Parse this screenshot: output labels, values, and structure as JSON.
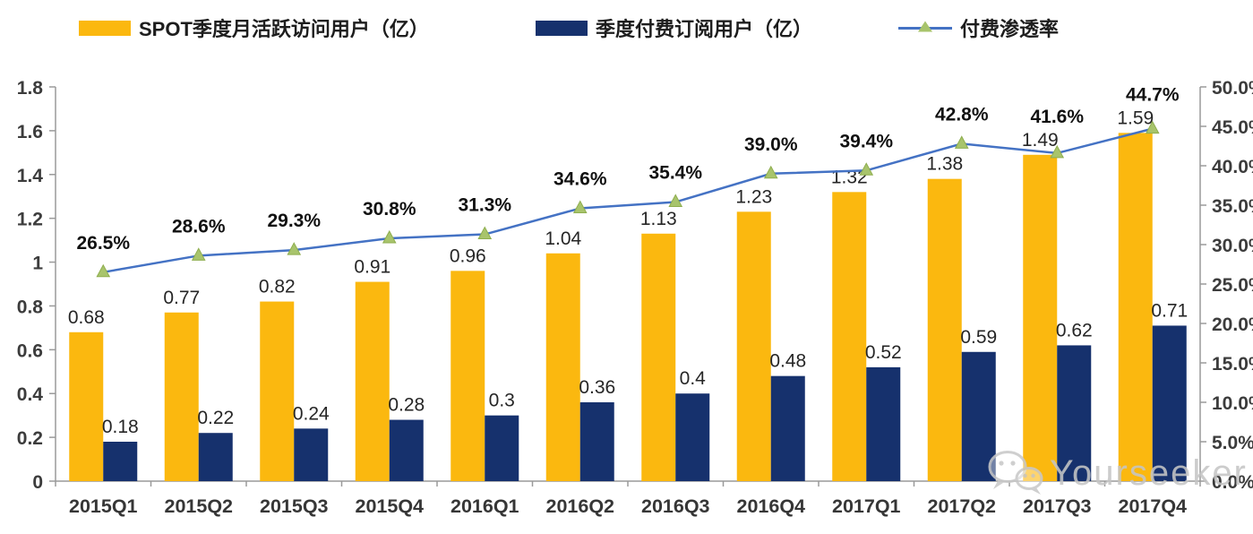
{
  "watermark": {
    "text": "Yourseeker",
    "icon": "wechat-icon"
  },
  "colors": {
    "mau_bar": "#FBB80F",
    "subs_bar": "#16316D",
    "penetration_line": "#4472C4",
    "penetration_marker": "#A8C46C",
    "penetration_marker_edge": "#8FAE4F",
    "axis": "#9a9a9a",
    "watermark_gray": "#c9c9c9"
  },
  "chart_data": {
    "type": "bar+line combo",
    "title": "",
    "grid": false,
    "legend_position": "top",
    "categories": [
      "2015Q1",
      "2015Q2",
      "2015Q3",
      "2015Q4",
      "2016Q1",
      "2016Q2",
      "2016Q3",
      "2016Q4",
      "2017Q1",
      "2017Q2",
      "2017Q3",
      "2017Q4"
    ],
    "series": [
      {
        "name": "SPOT季度月活跃访问用户（亿）",
        "type": "bar",
        "axis": "left",
        "color": "#FBB80F",
        "values": [
          0.68,
          0.77,
          0.82,
          0.91,
          0.96,
          1.04,
          1.13,
          1.23,
          1.32,
          1.38,
          1.49,
          1.59
        ],
        "labels": [
          "0.68",
          "0.77",
          "0.82",
          "0.91",
          "0.96",
          "1.04",
          "1.13",
          "1.23",
          "1.32",
          "1.38",
          "1.49",
          "1.59"
        ]
      },
      {
        "name": "季度付费订阅用户（亿）",
        "type": "bar",
        "axis": "left",
        "color": "#16316D",
        "values": [
          0.18,
          0.22,
          0.24,
          0.28,
          0.3,
          0.36,
          0.4,
          0.48,
          0.52,
          0.59,
          0.62,
          0.71
        ],
        "labels": [
          "0.18",
          "0.22",
          "0.24",
          "0.28",
          "0.3",
          "0.36",
          "0.4",
          "0.48",
          "0.52",
          "0.59",
          "0.62",
          "0.71"
        ]
      },
      {
        "name": "付费渗透率",
        "type": "line",
        "axis": "right",
        "color": "#4472C4",
        "marker": "triangle",
        "marker_color": "#A8C46C",
        "marker_edge": "#8FAE4F",
        "values": [
          26.5,
          28.6,
          29.3,
          30.8,
          31.3,
          34.6,
          35.4,
          39.0,
          39.4,
          42.8,
          41.6,
          44.7
        ],
        "labels": [
          "26.5%",
          "28.6%",
          "29.3%",
          "30.8%",
          "31.3%",
          "34.6%",
          "35.4%",
          "39.0%",
          "39.4%",
          "42.8%",
          "41.6%",
          "44.7%"
        ]
      }
    ],
    "left_axis": {
      "min": 0,
      "max": 1.8,
      "step": 0.2,
      "ticks": [
        "1.8",
        "1.6",
        "1.4",
        "1.2",
        "1",
        "0.8",
        "0.6",
        "0.4",
        "0.2",
        "0"
      ]
    },
    "right_axis": {
      "min": 0,
      "max": 50,
      "step": 5,
      "ticks": [
        "50.0%",
        "45.0%",
        "40.0%",
        "35.0%",
        "30.0%",
        "25.0%",
        "20.0%",
        "15.0%",
        "10.0%",
        "5.0%",
        "0.0%"
      ]
    }
  }
}
